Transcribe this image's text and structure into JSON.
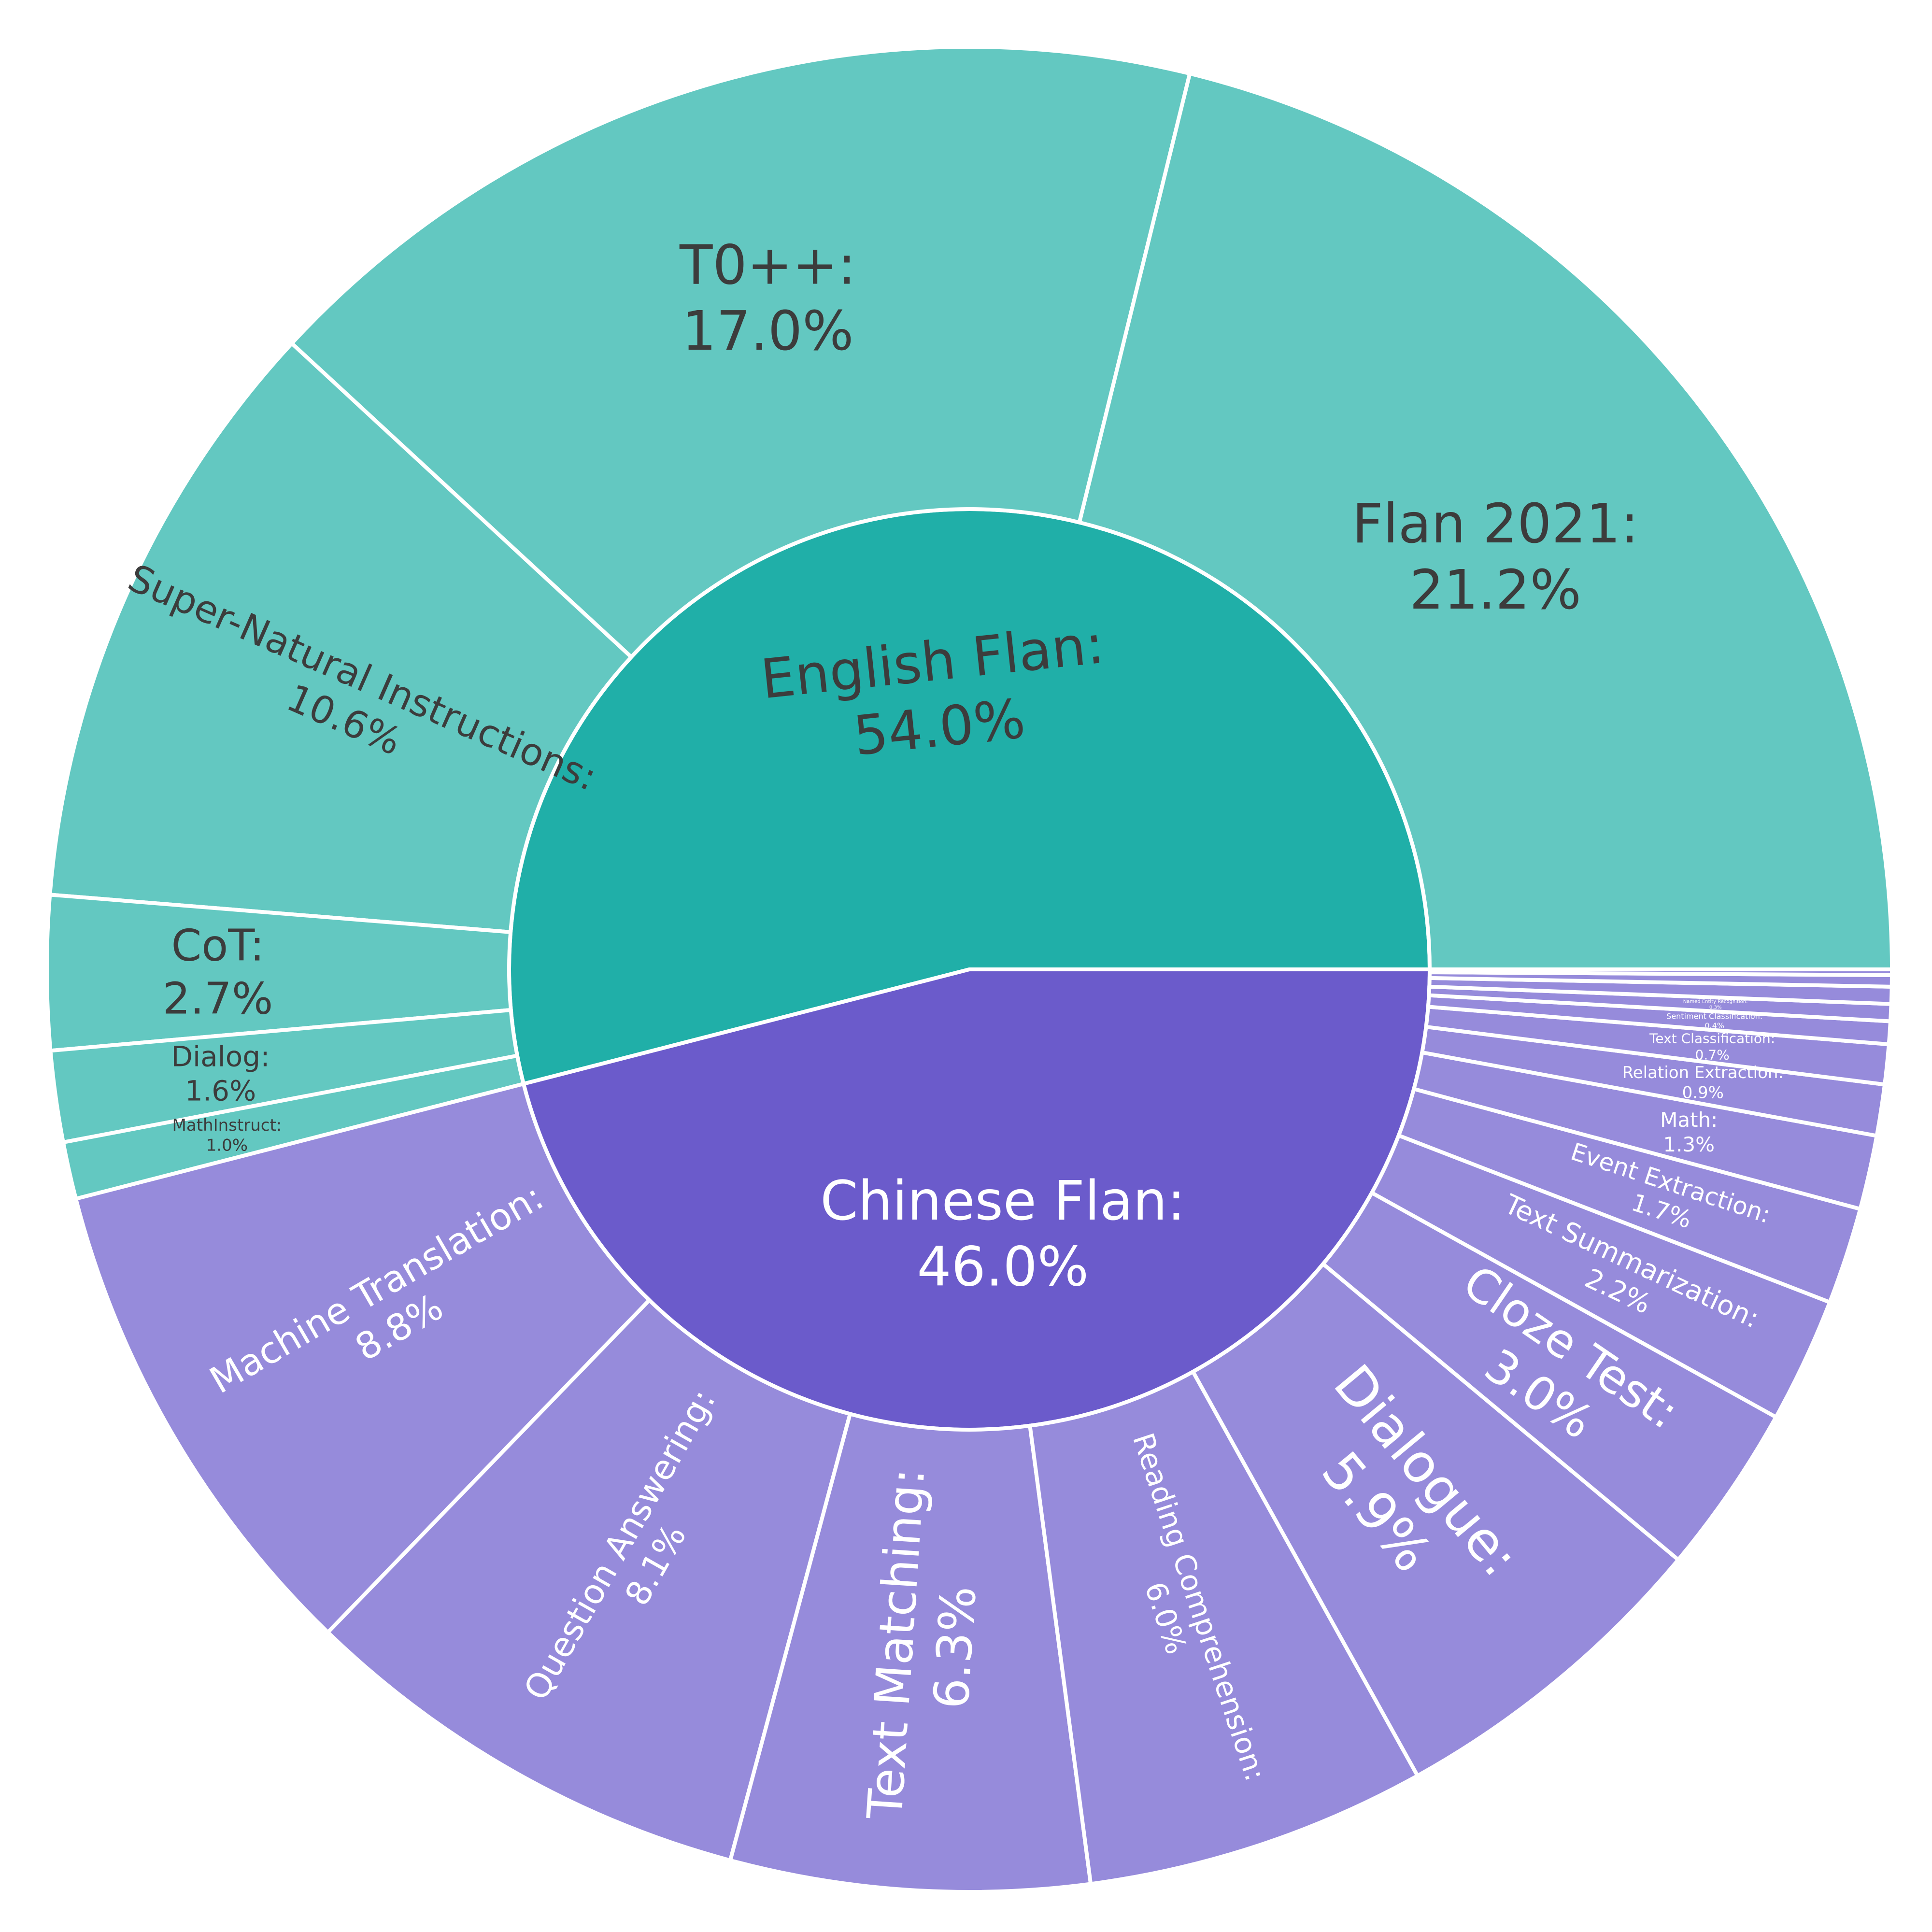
{
  "chart_data": {
    "type": "sunburst",
    "colors": {
      "english_inner": "#20AFA8",
      "english_outer": "#63C8C1",
      "chinese_inner": "#6B5BCB",
      "chinese_outer": "#968BDB",
      "separator": "#ffffff",
      "dark_text": "#3c3c3c",
      "light_text": "#ffffff"
    },
    "groups": [
      {
        "name": "English Flan",
        "value": 54.0,
        "percent_text": "54.0%",
        "children": [
          {
            "name": "Flan 2021",
            "value": 21.2,
            "percent_text": "21.2%"
          },
          {
            "name": "T0++",
            "value": 17.0,
            "percent_text": "17.0%"
          },
          {
            "name": "Super-Natural Instructions",
            "value": 10.6,
            "percent_text": "10.6%"
          },
          {
            "name": "CoT",
            "value": 2.7,
            "percent_text": "2.7%"
          },
          {
            "name": "Dialog",
            "value": 1.6,
            "percent_text": "1.6%"
          },
          {
            "name": "MathInstruct",
            "value": 1.0,
            "percent_text": "1.0%"
          }
        ]
      },
      {
        "name": "Chinese Flan",
        "value": 46.0,
        "percent_text": "46.0%",
        "children": [
          {
            "name": "Machine Translation",
            "value": 8.8,
            "percent_text": "8.8%"
          },
          {
            "name": "Question Answering",
            "value": 8.1,
            "percent_text": "8.1%"
          },
          {
            "name": "Text Matching",
            "value": 6.3,
            "percent_text": "6.3%"
          },
          {
            "name": "Reading Comprehension",
            "value": 6.0,
            "percent_text": "6.0%"
          },
          {
            "name": "Dialogue",
            "value": 5.9,
            "percent_text": "5.9%"
          },
          {
            "name": "Cloze Test",
            "value": 3.0,
            "percent_text": "3.0%"
          },
          {
            "name": "Text Summarization",
            "value": 2.2,
            "percent_text": "2.2%"
          },
          {
            "name": "Event Extraction",
            "value": 1.7,
            "percent_text": "1.7%"
          },
          {
            "name": "Math",
            "value": 1.3,
            "percent_text": "1.3%"
          },
          {
            "name": "Relation Extraction",
            "value": 0.9,
            "percent_text": "0.9%"
          },
          {
            "name": "Text Classification",
            "value": 0.7,
            "percent_text": "0.7%"
          },
          {
            "name": "Sentiment Classification",
            "value": 0.4,
            "percent_text": "0.4%"
          },
          {
            "name": "Named Entity Recognition",
            "value": 0.3,
            "percent_text": "0.3%"
          },
          {
            "name": "",
            "value": 0.3,
            "percent_text": ""
          },
          {
            "name": "",
            "value": 0.2,
            "percent_text": ""
          },
          {
            "name": "",
            "value": 0.1,
            "percent_text": ""
          }
        ]
      }
    ]
  }
}
